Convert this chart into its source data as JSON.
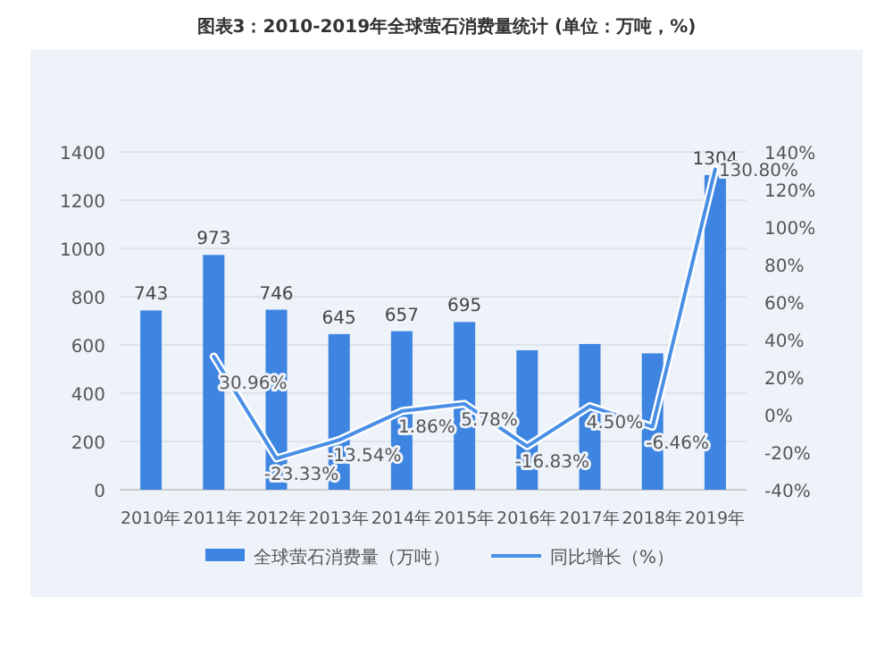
{
  "chart_data": {
    "type": "bar",
    "title": "图表3：2010-2019年全球萤石消费量统计 (单位：万吨，%)",
    "categories": [
      "2010年",
      "2011年",
      "2012年",
      "2013年",
      "2014年",
      "2015年",
      "2016年",
      "2017年",
      "2018年",
      "2019年"
    ],
    "series": [
      {
        "name": "全球萤石消费量（万吨）",
        "color": "#3d85e0",
        "values": [
          743,
          973,
          746,
          645,
          657,
          695,
          578,
          604,
          565,
          1304
        ],
        "value_labels": [
          "743",
          "973",
          "746",
          "645",
          "657",
          "695",
          null,
          null,
          null,
          "1304"
        ]
      },
      {
        "name": "同比增长（%）",
        "type": "line",
        "axis": "y2",
        "color": "#4a8fe6",
        "values": [
          null,
          30.96,
          -23.33,
          -13.54,
          1.86,
          5.78,
          -16.83,
          4.5,
          -6.46,
          130.8
        ],
        "value_labels": [
          null,
          "30.96%",
          "-23.33%",
          "-13.54%",
          "1.86%",
          "5.78%",
          "-16.83%",
          "4.50%",
          "-6.46%",
          "130.80%"
        ]
      }
    ],
    "ylim": [
      0,
      1400
    ],
    "yticks": [
      0,
      200,
      400,
      600,
      800,
      1000,
      1200,
      1400
    ],
    "y2lim": [
      -40,
      140
    ],
    "y2ticks": [
      {
        "value": -40,
        "label": "-40%"
      },
      {
        "value": -20,
        "label": "-20%"
      },
      {
        "value": 0,
        "label": "0%"
      },
      {
        "value": 20,
        "label": "20%"
      },
      {
        "value": 40,
        "label": "40%"
      },
      {
        "value": 60,
        "label": "60%"
      },
      {
        "value": 80,
        "label": "80%"
      },
      {
        "value": 100,
        "label": "100%"
      },
      {
        "value": 120,
        "label": "120%"
      },
      {
        "value": 140,
        "label": "140%"
      }
    ],
    "grid": "y",
    "legend": "bottom",
    "marker": "none",
    "line_style": "solid"
  }
}
